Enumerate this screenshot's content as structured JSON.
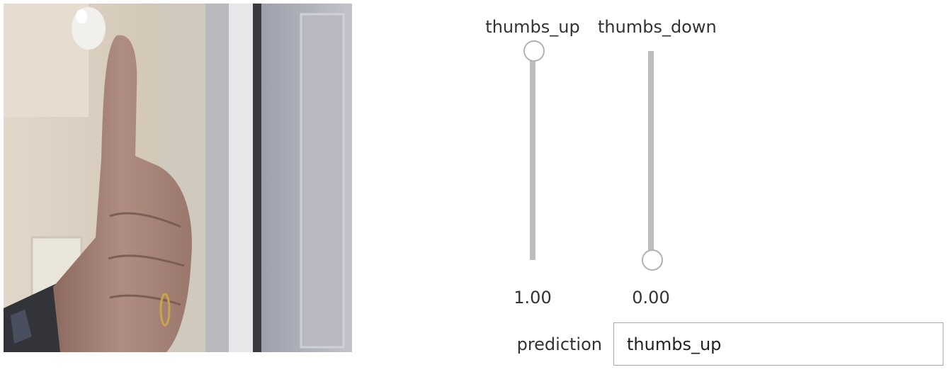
{
  "camera": {
    "subject": "thumbs-up-hand"
  },
  "sliders": [
    {
      "label": "thumbs_up",
      "value": 1.0,
      "value_text": "1.00"
    },
    {
      "label": "thumbs_down",
      "value": 0.0,
      "value_text": "0.00"
    }
  ],
  "prediction": {
    "label": "prediction",
    "value": "thumbs_up"
  },
  "colors": {
    "track": "#bdbdbd",
    "handle_border": "#b2b2b2",
    "text": "#333333"
  }
}
